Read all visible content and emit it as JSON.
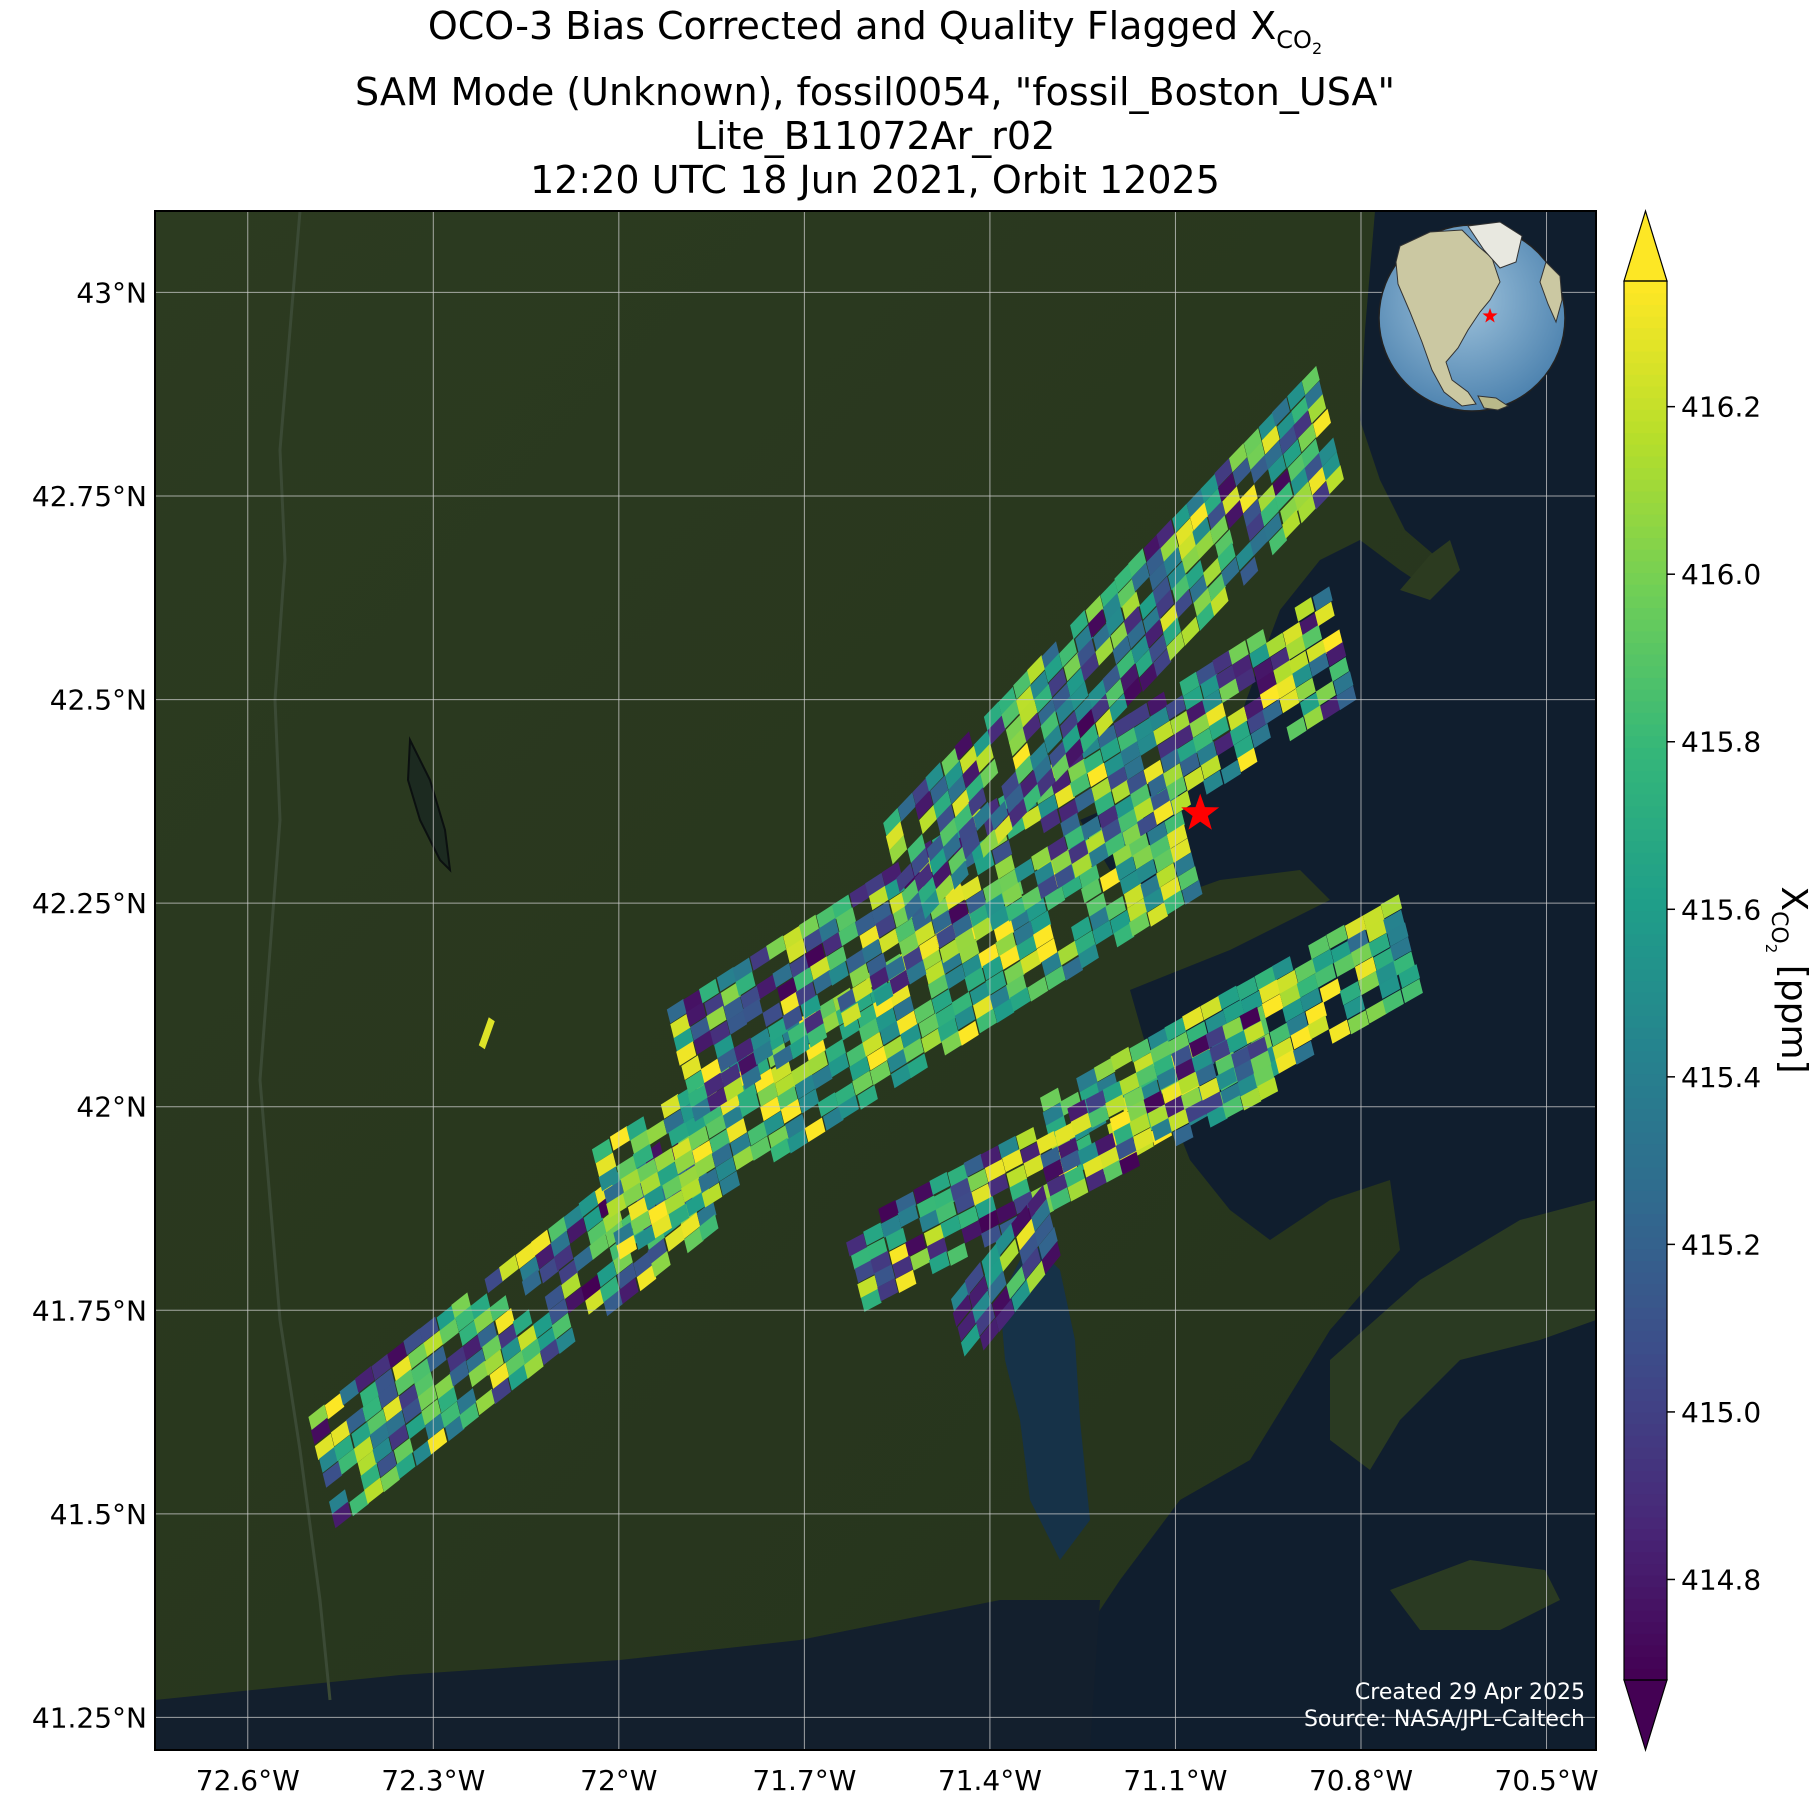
{
  "title": {
    "line1_prefix": "OCO-3 Bias Corrected and Quality Flagged X",
    "line1_sub": "CO",
    "line1_sub2": "2",
    "line2": "SAM Mode (Unknown), fossil0054, \"fossil_Boston_USA\"",
    "line3": "Lite_B11072Ar_r02",
    "line4": "12:20 UTC 18 Jun 2021, Orbit 12025"
  },
  "credits": {
    "created": "Created 29 Apr 2025",
    "source": "Source: NASA/JPL-Caltech"
  },
  "colorbar": {
    "label_prefix": "X",
    "label_sub": "CO",
    "label_sub2": "2",
    "label_suffix": " [ppm]",
    "vmin": 414.68,
    "vmax": 416.35,
    "ticks": [
      "414.8",
      "415.0",
      "415.2",
      "415.4",
      "415.6",
      "415.8",
      "416.0",
      "416.2"
    ],
    "colormap": "viridis",
    "extend": "both"
  },
  "chart_data": {
    "type": "map",
    "projection": "plate-carree",
    "xlim": [
      -72.75,
      -70.42
    ],
    "ylim": [
      41.21,
      43.1
    ],
    "x_ticks": [
      "72.6°W",
      "72.3°W",
      "72°W",
      "71.7°W",
      "71.4°W",
      "71.1°W",
      "70.8°W",
      "70.5°W"
    ],
    "x_tick_values": [
      -72.6,
      -72.3,
      -72.0,
      -71.7,
      -71.4,
      -71.1,
      -70.8,
      -70.5
    ],
    "y_ticks": [
      "43°N",
      "42.75°N",
      "42.5°N",
      "42.25°N",
      "42°N",
      "41.75°N",
      "41.5°N",
      "41.25°N"
    ],
    "y_tick_values": [
      43.0,
      42.75,
      42.5,
      42.25,
      42.0,
      41.75,
      41.5,
      41.25
    ],
    "grid": true,
    "background": "satellite imagery",
    "target_marker": {
      "lon": -71.06,
      "lat": 42.36,
      "symbol": "red-star"
    },
    "inset": {
      "type": "globe",
      "marker_symbol": "red-star"
    },
    "swaths": [
      {
        "name": "",
        "start": [
          -72.48,
          41.55
        ],
        "end": [
          -71.86,
          41.92
        ],
        "length_cells": 24,
        "across_cells": 8
      },
      {
        "name": "",
        "start": [
          -72.02,
          41.88
        ],
        "end": [
          -71.08,
          42.33
        ],
        "length_cells": 34,
        "across_cells": 8
      },
      {
        "name": "",
        "start": [
          -71.9,
          42.05
        ],
        "end": [
          -70.83,
          42.57
        ],
        "length_cells": 40,
        "across_cells": 8
      },
      {
        "name": "",
        "start": [
          -71.55,
          42.28
        ],
        "end": [
          -70.85,
          42.84
        ],
        "length_cells": 30,
        "across_cells": 8
      },
      {
        "name": "",
        "start": [
          -71.3,
          41.95
        ],
        "end": [
          -70.72,
          42.2
        ],
        "length_cells": 20,
        "across_cells": 7
      },
      {
        "name": "",
        "start": [
          -71.62,
          41.8
        ],
        "end": [
          -70.95,
          42.07
        ],
        "length_cells": 24,
        "across_cells": 6
      },
      {
        "name": "",
        "start": [
          -71.45,
          41.72
        ],
        "end": [
          -71.3,
          41.86
        ],
        "length_cells": 6,
        "across_cells": 5
      }
    ],
    "isolated_pixel": {
      "lon": -72.22,
      "lat": 42.1
    }
  }
}
